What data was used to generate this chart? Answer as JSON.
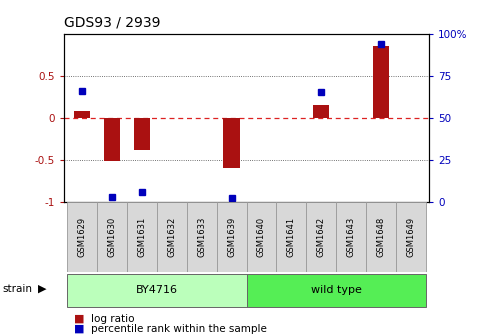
{
  "title": "GDS93 / 2939",
  "samples": [
    "GSM1629",
    "GSM1630",
    "GSM1631",
    "GSM1632",
    "GSM1633",
    "GSM1639",
    "GSM1640",
    "GSM1641",
    "GSM1642",
    "GSM1643",
    "GSM1648",
    "GSM1649"
  ],
  "log_ratio": [
    0.08,
    -0.52,
    -0.38,
    0.0,
    0.0,
    -0.6,
    0.0,
    0.0,
    0.15,
    0.0,
    0.85,
    0.0
  ],
  "percentile": [
    0.32,
    -0.94,
    -0.88,
    null,
    null,
    -0.96,
    null,
    null,
    0.3,
    null,
    0.88,
    null
  ],
  "strain_groups": [
    {
      "label": "BY4716",
      "start": 0,
      "end": 5,
      "color": "#bbffbb"
    },
    {
      "label": "wild type",
      "start": 6,
      "end": 11,
      "color": "#55ee55"
    }
  ],
  "bar_color": "#aa1111",
  "dot_color": "#0000bb",
  "ylim": [
    -1.0,
    1.0
  ],
  "yticks_left": [
    -1.0,
    -0.5,
    0.0,
    0.5
  ],
  "yticks_right": [
    0,
    25,
    50,
    75,
    100
  ],
  "zero_line_color": "#dd2222",
  "bg_color": "#ffffff",
  "bar_width": 0.55,
  "label_box_color": "#d8d8d8",
  "label_box_edge": "#999999"
}
